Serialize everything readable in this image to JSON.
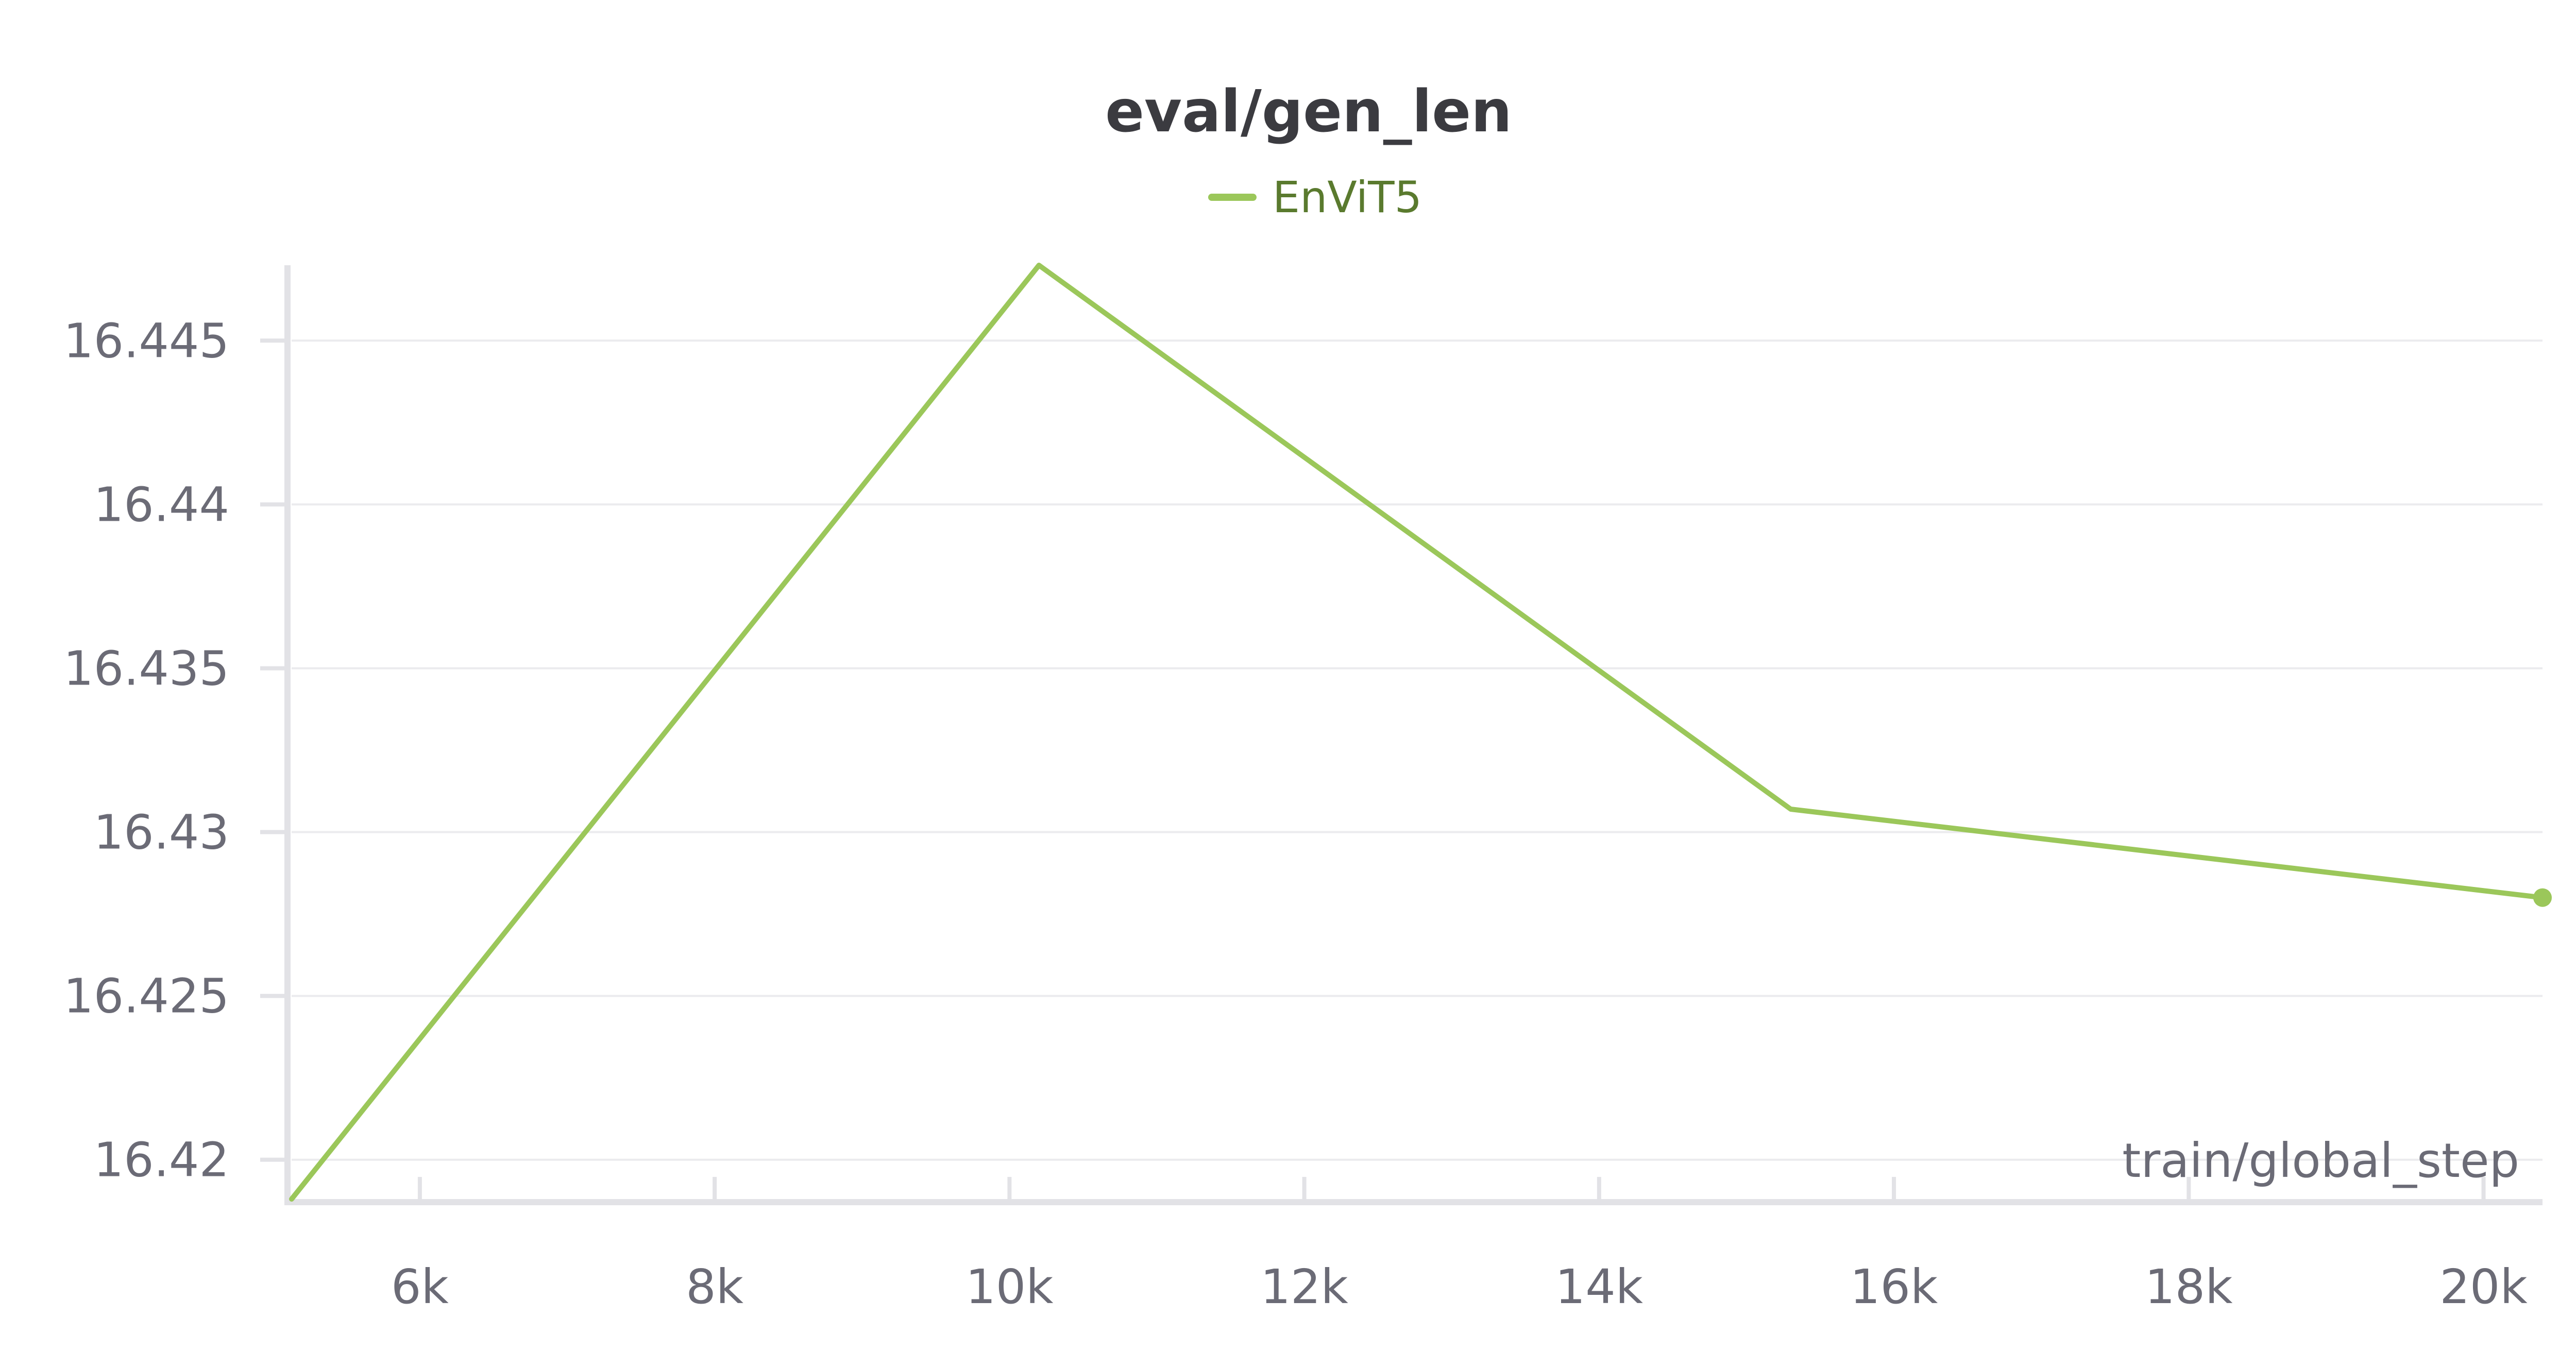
{
  "chart_data": {
    "type": "line",
    "title": "eval/gen_len",
    "xlabel": "train/global_step",
    "ylabel": "",
    "legend": {
      "placement": "top-center"
    },
    "grid": {
      "x": false,
      "y": true
    },
    "xlim": [
      5130,
      20400
    ],
    "ylim": [
      16.4188,
      16.4473
    ],
    "x_ticks": [
      6000,
      8000,
      10000,
      12000,
      14000,
      16000,
      18000,
      20000
    ],
    "x_tick_labels": [
      "6k",
      "8k",
      "10k",
      "12k",
      "14k",
      "16k",
      "18k",
      "20k"
    ],
    "y_ticks": [
      16.42,
      16.425,
      16.43,
      16.435,
      16.44,
      16.445
    ],
    "y_tick_labels": [
      "16.42",
      "16.425",
      "16.43",
      "16.435",
      "16.44",
      "16.445"
    ],
    "series": [
      {
        "name": "EnViT5",
        "color": "#9bc75a",
        "x": [
          5130,
          10200,
          15300,
          20400
        ],
        "y": [
          16.4188,
          16.4473,
          16.4307,
          16.428
        ]
      }
    ]
  }
}
